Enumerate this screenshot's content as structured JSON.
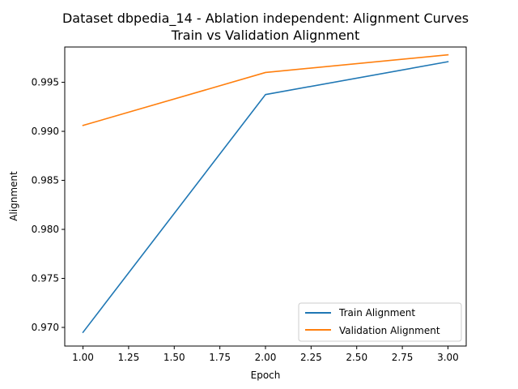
{
  "chart_data": {
    "type": "line",
    "title": "Dataset dbpedia_14 - Ablation independent: Alignment Curves",
    "subtitle": "Train vs Validation Alignment",
    "xlabel": "Epoch",
    "ylabel": "Alignment",
    "x": [
      1.0,
      2.0,
      3.0
    ],
    "xlim": [
      0.9,
      3.1
    ],
    "ylim": [
      0.9681,
      0.9986
    ],
    "xticks": [
      "1.00",
      "1.25",
      "1.50",
      "1.75",
      "2.00",
      "2.25",
      "2.50",
      "2.75",
      "3.00"
    ],
    "yticks": [
      "0.970",
      "0.975",
      "0.980",
      "0.985",
      "0.990",
      "0.995"
    ],
    "grid": false,
    "legend_position": "lower-right",
    "series": [
      {
        "name": "Train Alignment",
        "values": [
          0.9695,
          0.99375,
          0.9971
        ],
        "color": "#1f77b4"
      },
      {
        "name": "Validation Alignment",
        "values": [
          0.9906,
          0.996,
          0.9978
        ],
        "color": "#ff7f0e"
      }
    ]
  }
}
